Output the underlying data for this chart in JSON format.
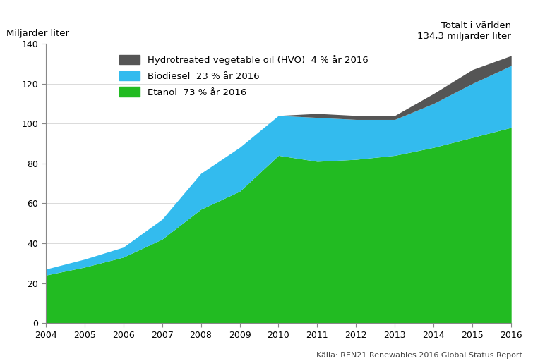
{
  "years": [
    2004,
    2005,
    2006,
    2007,
    2008,
    2009,
    2010,
    2011,
    2012,
    2013,
    2014,
    2015,
    2016
  ],
  "etanol": [
    24,
    28,
    33,
    42,
    57,
    66,
    84,
    81,
    82,
    84,
    88,
    93,
    98
  ],
  "biodiesel": [
    3,
    4,
    5,
    10,
    18,
    22,
    20,
    22,
    20,
    18,
    22,
    27,
    31
  ],
  "hvo": [
    0,
    0,
    0,
    0,
    0,
    0,
    0,
    2,
    2,
    2,
    5,
    7,
    5
  ],
  "etanol_color": "#22bb22",
  "biodiesel_color": "#33bbee",
  "hvo_color": "#555555",
  "ylabel": "Miljarder liter",
  "ylim": [
    0,
    140
  ],
  "yticks": [
    0,
    20,
    40,
    60,
    80,
    100,
    120,
    140
  ],
  "legend_hvo": "Hydrotreated vegetable oil (HVO)  4 % år 2016",
  "legend_biodiesel": "Biodiesel  23 % år 2016",
  "legend_etanol": "Etanol  73 % år 2016",
  "top_right_line1": "Totalt i världen",
  "top_right_line2": "134,3 miljarder liter",
  "source": "Källa: REN21 Renewables 2016 Global Status Report",
  "bg_color": "#ffffff"
}
